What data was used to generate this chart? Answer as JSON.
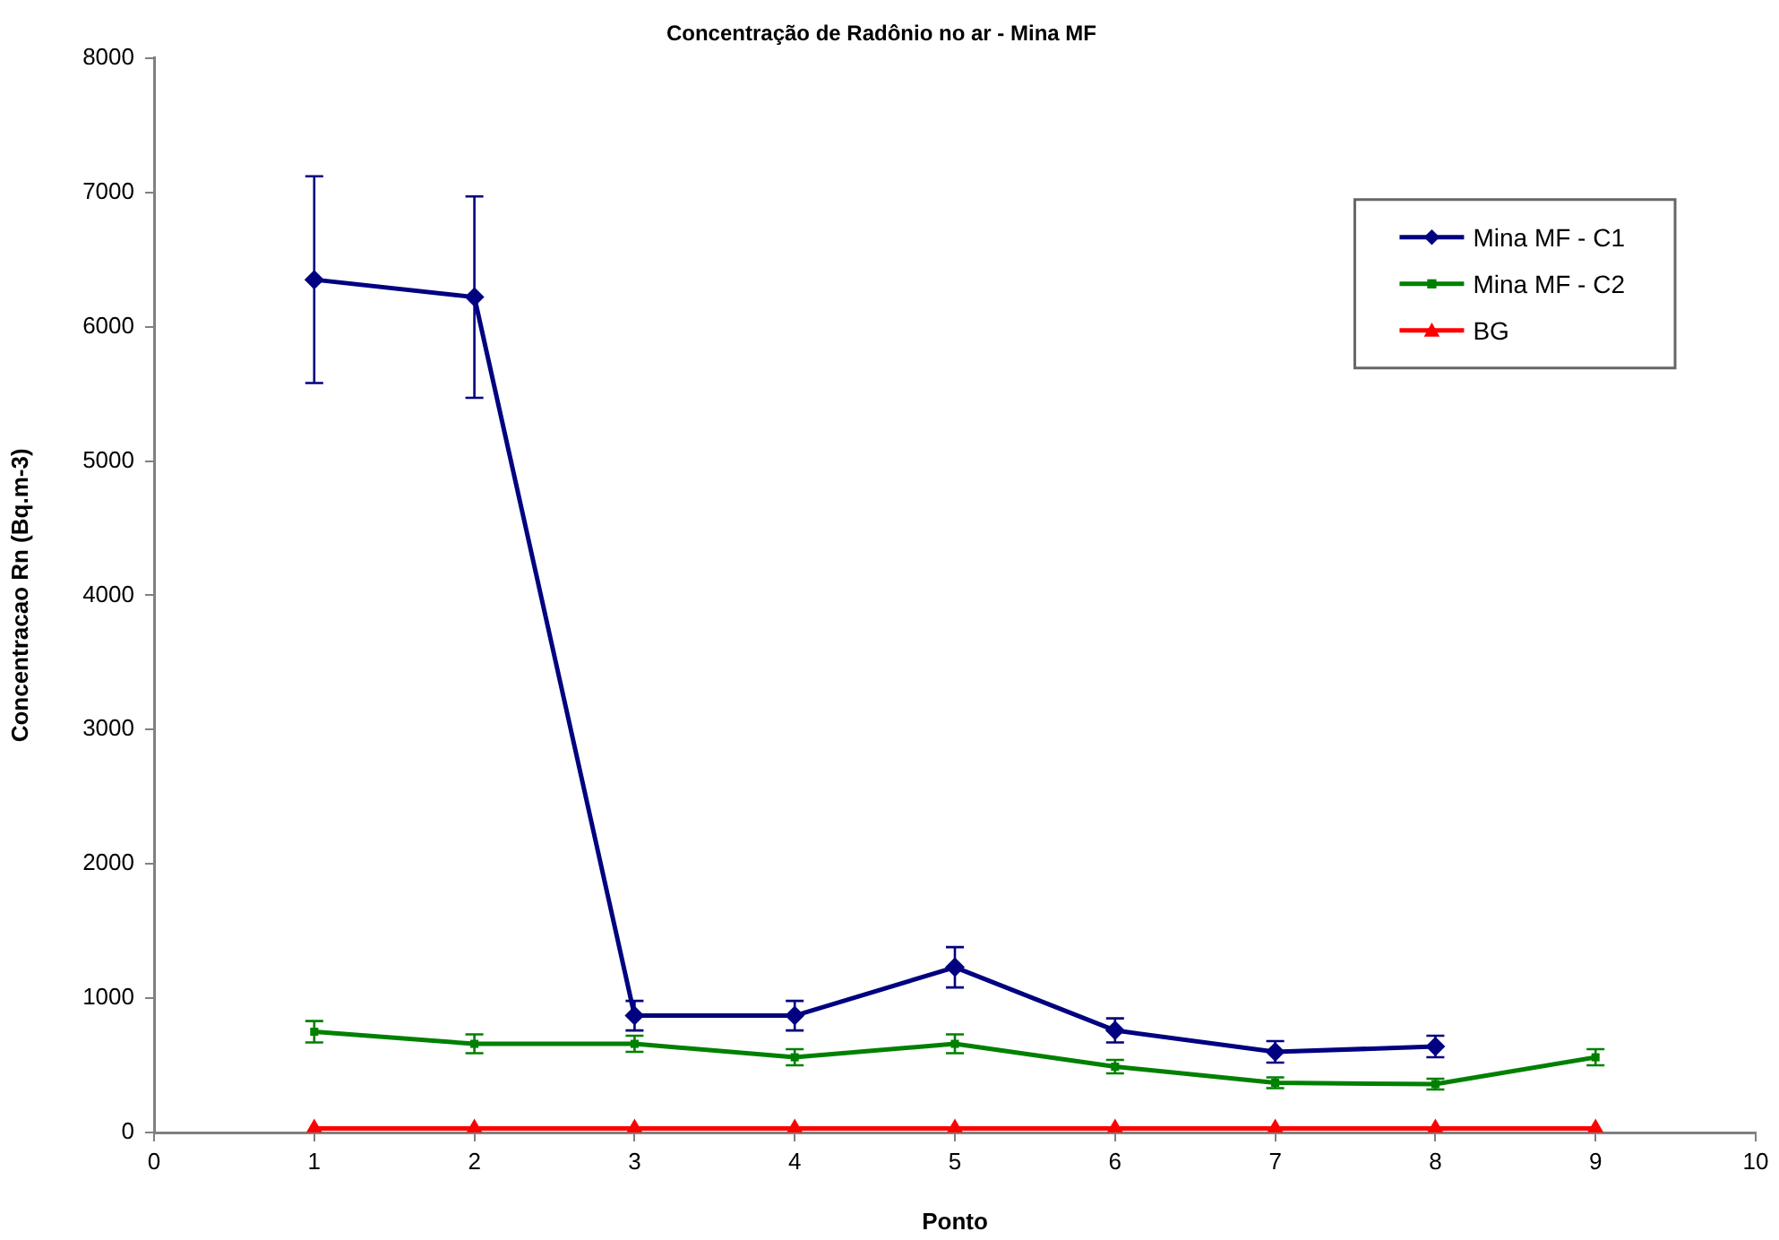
{
  "chart_data": {
    "type": "line",
    "title": "Concentração de Radônio no ar - Mina MF",
    "xlabel": "Ponto",
    "ylabel": "Concentracao Rn (Bq.m-3)",
    "xlim": [
      0,
      10
    ],
    "xticks": [
      0,
      1,
      2,
      3,
      4,
      5,
      6,
      7,
      8,
      9,
      10
    ],
    "ylim": [
      0,
      8000
    ],
    "yticks": [
      0,
      1000,
      2000,
      3000,
      4000,
      5000,
      6000,
      7000,
      8000
    ],
    "legend": "top right",
    "series": [
      {
        "name": "Mina MF - C1",
        "color": "#000080",
        "marker": "diamond",
        "x": [
          1,
          2,
          3,
          4,
          5,
          6,
          7,
          8
        ],
        "values": [
          6350,
          6220,
          870,
          870,
          1230,
          760,
          600,
          640
        ],
        "errors": [
          770,
          750,
          110,
          110,
          150,
          90,
          80,
          80
        ]
      },
      {
        "name": "Mina MF - C2",
        "color": "#008000",
        "marker": "square",
        "x": [
          1,
          2,
          3,
          4,
          5,
          6,
          7,
          8,
          9
        ],
        "values": [
          750,
          660,
          660,
          560,
          660,
          490,
          370,
          360,
          560
        ],
        "errors": [
          80,
          70,
          60,
          60,
          70,
          50,
          40,
          40,
          60
        ]
      },
      {
        "name": "BG",
        "color": "#ff0000",
        "marker": "triangle",
        "x": [
          1,
          2,
          3,
          4,
          5,
          6,
          7,
          8,
          9
        ],
        "values": [
          30,
          30,
          30,
          30,
          30,
          30,
          30,
          30,
          30
        ]
      }
    ]
  }
}
